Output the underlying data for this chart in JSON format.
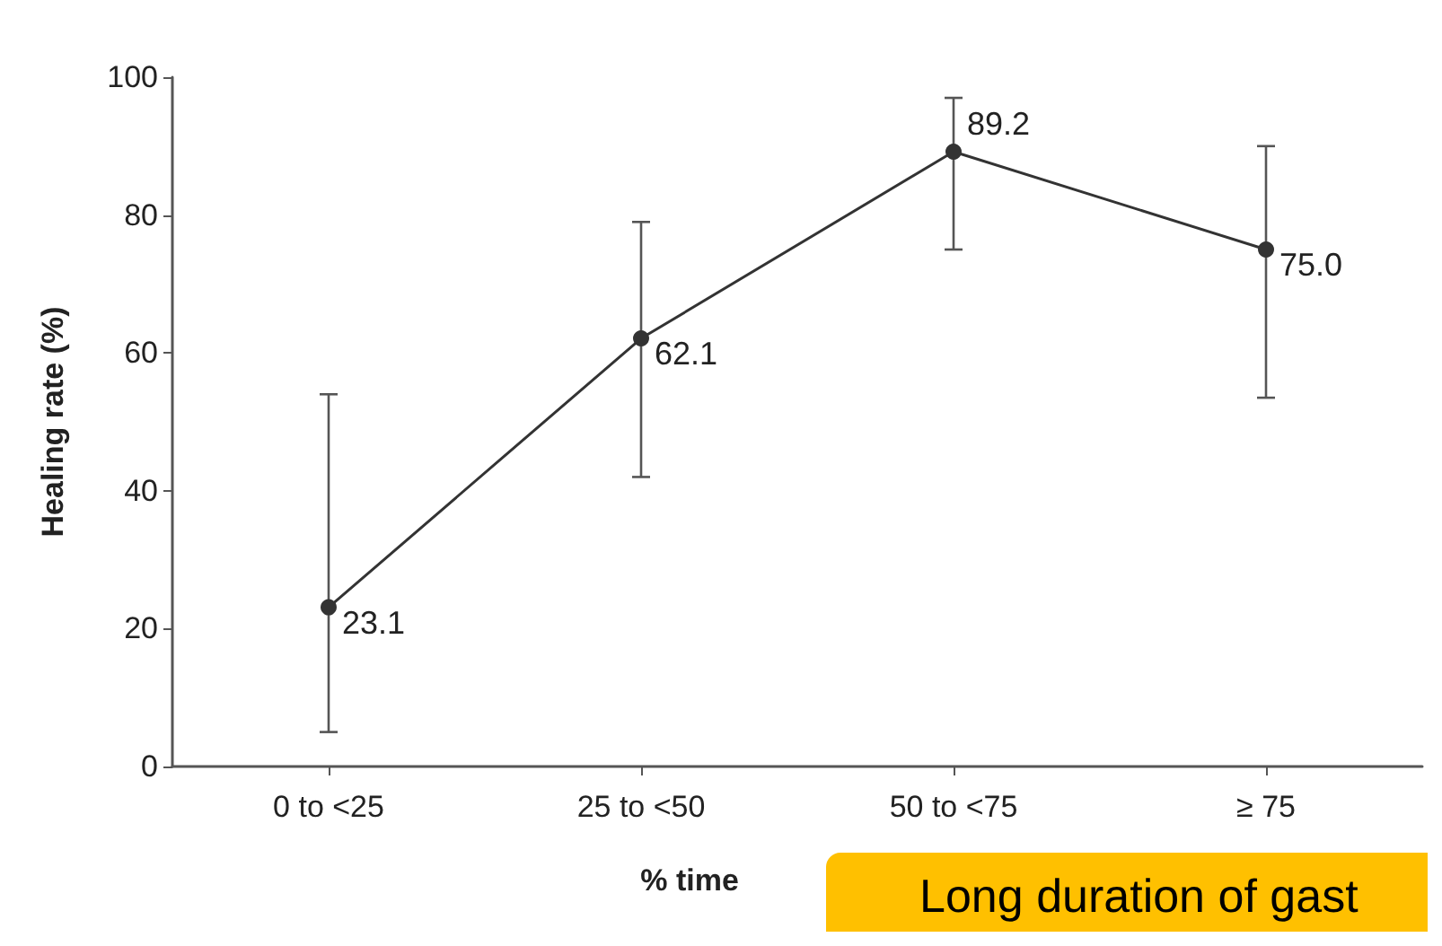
{
  "chart_data": {
    "type": "line",
    "xlabel": "% time",
    "ylabel": "Healing rate (%)",
    "categories": [
      "0 to <25",
      "25 to <50",
      "50 to <75",
      "≥ 75"
    ],
    "series": [
      {
        "color": "#333333",
        "values": [
          23.1,
          62.1,
          89.2,
          75.0
        ],
        "errors": [
          [
            5,
            54
          ],
          [
            42,
            79
          ],
          [
            75,
            97
          ],
          [
            53.5,
            90
          ]
        ],
        "value_labels": [
          "23.1",
          "62.1",
          "89.2",
          "75.0"
        ]
      }
    ],
    "ylim": [
      0,
      100
    ],
    "yticks": [
      0,
      20,
      40,
      60,
      80,
      100
    ],
    "grid": false,
    "marker": "circle",
    "line_style": "solid",
    "annotations": [
      "Long duration of gast"
    ]
  }
}
